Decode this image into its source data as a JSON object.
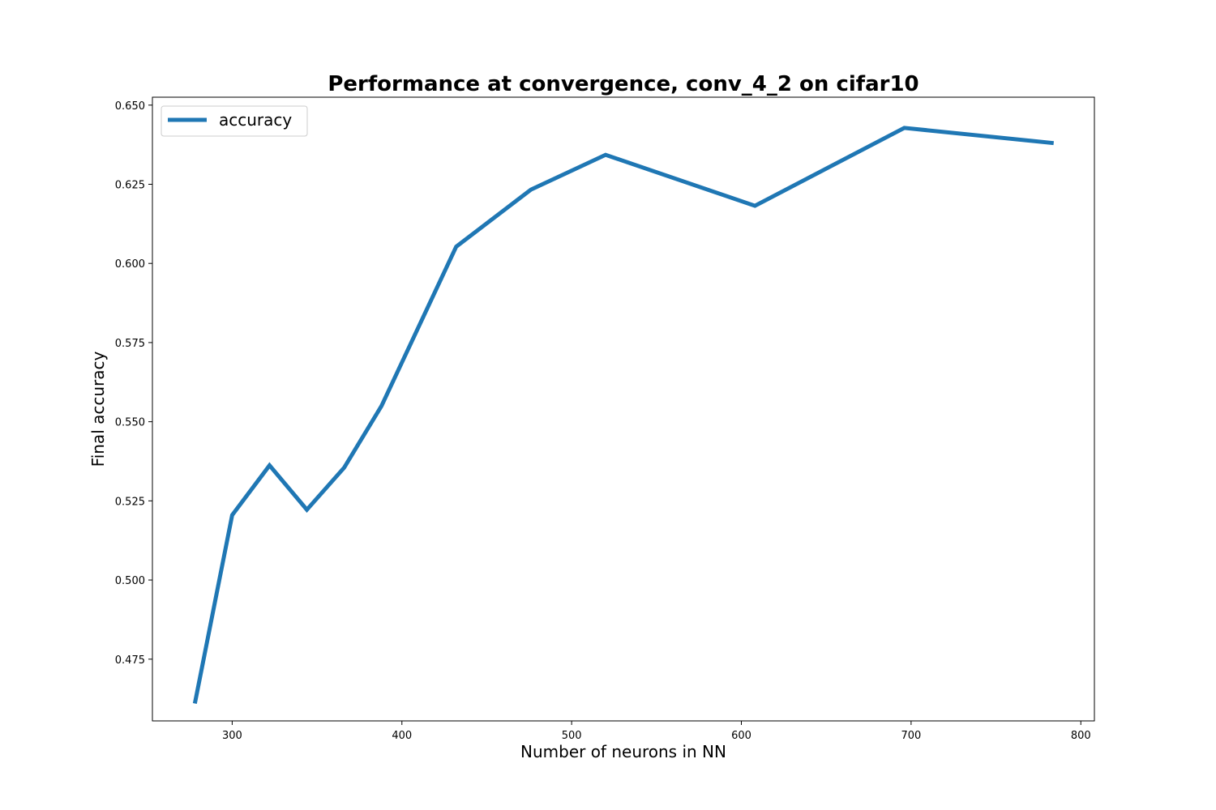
{
  "chart_data": {
    "type": "line",
    "title": "Performance at convergence, conv_4_2 on cifar10",
    "xlabel": "Number of neurons in NN",
    "ylabel": "Final accuracy",
    "xlim": [
      253,
      808
    ],
    "ylim": [
      0.4555,
      0.6525
    ],
    "x_ticks": [
      300,
      400,
      500,
      600,
      700,
      800
    ],
    "y_ticks": [
      0.475,
      0.5,
      0.525,
      0.55,
      0.575,
      0.6,
      0.625,
      0.65
    ],
    "x_tick_labels": [
      "300",
      "400",
      "500",
      "600",
      "700",
      "800"
    ],
    "y_tick_labels": [
      "0.475",
      "0.500",
      "0.525",
      "0.550",
      "0.575",
      "0.600",
      "0.625",
      "0.650"
    ],
    "grid": false,
    "legend_position": "upper-left",
    "series": [
      {
        "name": "accuracy",
        "color": "#1f77b4",
        "x": [
          278,
          300,
          322,
          344,
          366,
          388,
          432,
          476,
          520,
          608,
          696,
          784
        ],
        "y": [
          0.461,
          0.5205,
          0.5362,
          0.5222,
          0.5355,
          0.555,
          0.6053,
          0.6233,
          0.6343,
          0.6182,
          0.6428,
          0.638
        ]
      }
    ]
  }
}
